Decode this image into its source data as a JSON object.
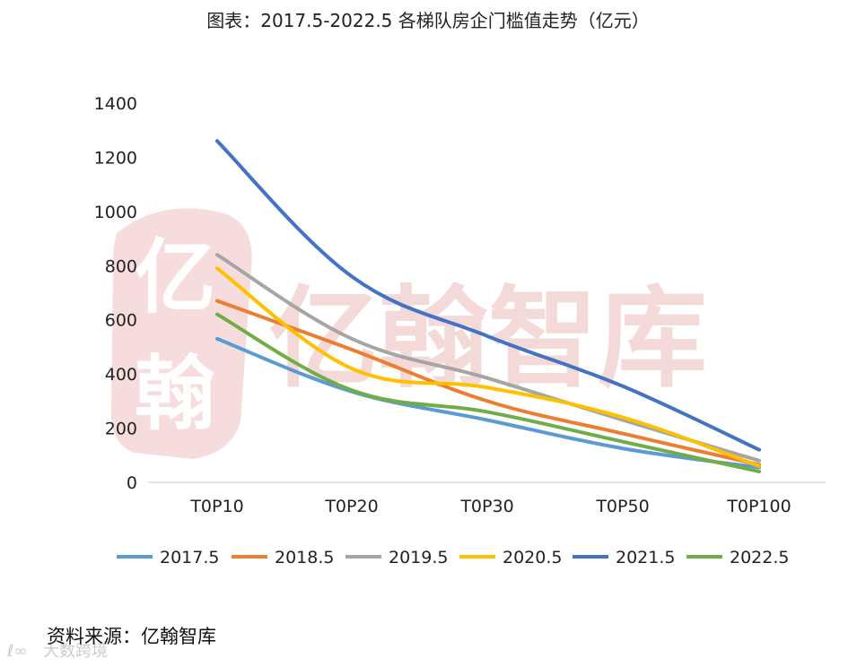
{
  "chart_data": {
    "type": "line",
    "title": "图表：2017.5-2022.5 各梯队房企门槛值走势（亿元）",
    "categories": [
      "T0P10",
      "T0P20",
      "T0P30",
      "T0P50",
      "T0P100"
    ],
    "ylim": [
      0,
      1400
    ],
    "yticks": [
      0,
      200,
      400,
      600,
      800,
      1000,
      1200,
      1400
    ],
    "grid": false,
    "legend_position": "bottom",
    "series": [
      {
        "name": "2017.5",
        "color": "#5b9bd5",
        "values": [
          530,
          335,
          230,
          125,
          55
        ]
      },
      {
        "name": "2018.5",
        "color": "#ed7d31",
        "values": [
          670,
          490,
          300,
          180,
          65
        ]
      },
      {
        "name": "2019.5",
        "color": "#a5a5a5",
        "values": [
          840,
          530,
          385,
          230,
          80
        ]
      },
      {
        "name": "2020.5",
        "color": "#ffc000",
        "values": [
          790,
          420,
          350,
          240,
          60
        ]
      },
      {
        "name": "2021.5",
        "color": "#4472c4",
        "values": [
          1260,
          760,
          540,
          355,
          120
        ]
      },
      {
        "name": "2022.5",
        "color": "#70ad47",
        "values": [
          620,
          340,
          260,
          150,
          40
        ]
      }
    ]
  },
  "watermark": {
    "main": "亿翰智库",
    "seal_top": "亿",
    "seal_bottom": "翰",
    "corner": "大数跨境"
  },
  "source": "资料来源：亿翰智库"
}
